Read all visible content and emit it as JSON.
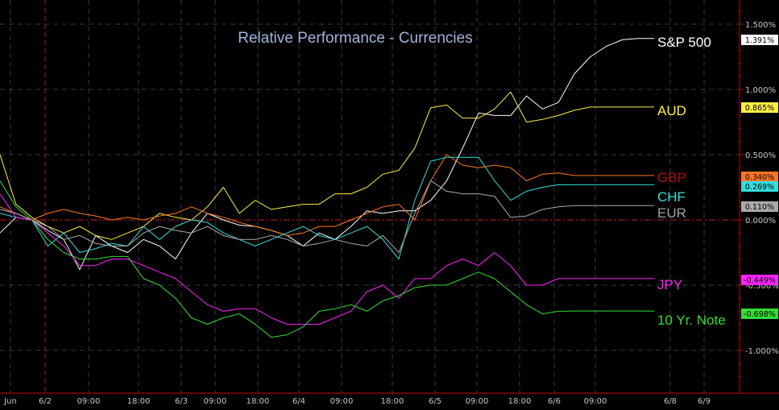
{
  "chart_data": {
    "type": "line",
    "title": "Relative Performance -   Currencies",
    "xlabel": "",
    "ylabel": "",
    "x_tick_labels": [
      "Jun",
      "6/2",
      "09:00",
      "18:00",
      "6/3",
      "09:00",
      "18:00",
      "6/4",
      "09:00",
      "18:00",
      "6/5",
      "09:00",
      "18:00",
      "6/6",
      "09:00",
      "6/8",
      "6/9"
    ],
    "y_tick_labels": [
      "1.500%",
      "1.000%",
      "0.500%",
      "0.000%",
      "-0.500%",
      "-1.000%"
    ],
    "ylim": [
      -1.25,
      1.7
    ],
    "grid": true,
    "legend": "labels at right end of each line",
    "colors": {
      "background": "#000000",
      "grid": "#3a3a3a",
      "title": "#9fb4dc",
      "axis": "#c00000",
      "zero_line": "#c02020"
    },
    "x": [
      0,
      0.5,
      1,
      1.5,
      2,
      2.5,
      3,
      3.5,
      4,
      4.5,
      5,
      5.5,
      6,
      6.5,
      7,
      7.5,
      8,
      8.5,
      9,
      9.5,
      10,
      10.5,
      11,
      11.5,
      12,
      12.5,
      13,
      13.5,
      14,
      14.5,
      15,
      15.5,
      16,
      16.5,
      17,
      17.5,
      18,
      18.5,
      19,
      19.5,
      20,
      20.5
    ],
    "series": [
      {
        "name": "S&P 500",
        "color": "#ffffff",
        "end_value_label": "1.391%",
        "values": [
          -0.1,
          0.02,
          0.0,
          -0.08,
          -0.15,
          -0.38,
          -0.12,
          -0.2,
          -0.25,
          -0.15,
          -0.2,
          -0.3,
          -0.1,
          0.05,
          0.0,
          -0.04,
          -0.05,
          -0.08,
          -0.12,
          -0.2,
          -0.1,
          -0.15,
          -0.05,
          0.07,
          0.05,
          0.07,
          0.07,
          0.15,
          0.3,
          0.55,
          0.82,
          0.8,
          0.8,
          0.95,
          0.85,
          0.9,
          1.12,
          1.25,
          1.33,
          1.38,
          1.39,
          1.391
        ]
      },
      {
        "name": "AUD",
        "color": "#ffee44",
        "end_value_label": "0.865%",
        "values": [
          0.5,
          0.12,
          0.02,
          -0.05,
          -0.1,
          -0.05,
          -0.12,
          -0.15,
          -0.1,
          -0.05,
          0.05,
          0.02,
          0.0,
          0.1,
          0.25,
          0.05,
          0.15,
          0.08,
          0.1,
          0.12,
          0.12,
          0.2,
          0.2,
          0.25,
          0.35,
          0.38,
          0.55,
          0.86,
          0.88,
          0.78,
          0.78,
          0.85,
          0.98,
          0.75,
          0.77,
          0.8,
          0.84,
          0.865,
          0.865,
          0.865,
          0.865,
          0.865
        ]
      },
      {
        "name": "GBP",
        "color": "#ff7722",
        "end_value_label": "0.340%",
        "values": [
          0.1,
          0.05,
          0.0,
          0.05,
          0.08,
          0.05,
          0.03,
          0.0,
          0.02,
          0.0,
          0.03,
          0.05,
          0.1,
          0.05,
          0.02,
          -0.02,
          -0.05,
          -0.08,
          -0.12,
          -0.1,
          -0.05,
          -0.05,
          0.0,
          0.05,
          0.1,
          0.12,
          0.0,
          0.3,
          0.5,
          0.42,
          0.4,
          0.42,
          0.4,
          0.3,
          0.35,
          0.36,
          0.34,
          0.34,
          0.34,
          0.34,
          0.34,
          0.34
        ]
      },
      {
        "name": "CHF",
        "color": "#33dddd",
        "end_value_label": "0.269%",
        "values": [
          0.05,
          0.02,
          0.0,
          -0.2,
          -0.1,
          -0.25,
          -0.22,
          -0.18,
          -0.2,
          -0.05,
          -0.15,
          -0.05,
          0.0,
          -0.02,
          -0.1,
          -0.15,
          -0.2,
          -0.15,
          -0.1,
          -0.05,
          -0.12,
          -0.15,
          -0.1,
          -0.05,
          -0.15,
          -0.3,
          0.15,
          0.45,
          0.48,
          0.48,
          0.48,
          0.3,
          0.15,
          0.22,
          0.25,
          0.27,
          0.269,
          0.269,
          0.269,
          0.269,
          0.269,
          0.269
        ]
      },
      {
        "name": "EUR",
        "color": "#aaaaaa",
        "end_value_label": "0.110%",
        "values": [
          0.08,
          0.05,
          0.0,
          -0.05,
          -0.15,
          -0.12,
          -0.18,
          -0.2,
          -0.2,
          -0.1,
          -0.05,
          -0.08,
          -0.1,
          -0.05,
          -0.12,
          -0.15,
          -0.15,
          -0.12,
          -0.15,
          -0.2,
          -0.18,
          -0.15,
          -0.18,
          -0.2,
          -0.12,
          -0.25,
          0.05,
          0.3,
          0.22,
          0.2,
          0.2,
          0.18,
          0.02,
          0.03,
          0.08,
          0.1,
          0.11,
          0.11,
          0.11,
          0.11,
          0.11,
          0.11
        ]
      },
      {
        "name": "JPY",
        "color": "#ff22ff",
        "end_value_label": "-0.449%",
        "values": [
          0.2,
          0.02,
          0.0,
          -0.1,
          -0.2,
          -0.35,
          -0.35,
          -0.3,
          -0.3,
          -0.35,
          -0.4,
          -0.45,
          -0.55,
          -0.65,
          -0.7,
          -0.68,
          -0.68,
          -0.75,
          -0.8,
          -0.8,
          -0.8,
          -0.75,
          -0.7,
          -0.55,
          -0.5,
          -0.6,
          -0.45,
          -0.45,
          -0.35,
          -0.3,
          -0.35,
          -0.25,
          -0.35,
          -0.5,
          -0.5,
          -0.45,
          -0.449,
          -0.449,
          -0.449,
          -0.449,
          -0.449,
          -0.449
        ]
      },
      {
        "name": "10 Yr. Note",
        "color": "#33dd33",
        "end_value_label": "-0.698%",
        "values": [
          0.3,
          0.1,
          0.0,
          -0.15,
          -0.25,
          -0.3,
          -0.3,
          -0.28,
          -0.28,
          -0.45,
          -0.5,
          -0.6,
          -0.75,
          -0.8,
          -0.75,
          -0.72,
          -0.8,
          -0.9,
          -0.88,
          -0.82,
          -0.7,
          -0.68,
          -0.65,
          -0.7,
          -0.62,
          -0.58,
          -0.52,
          -0.5,
          -0.5,
          -0.45,
          -0.4,
          -0.45,
          -0.55,
          -0.65,
          -0.72,
          -0.7,
          -0.698,
          -0.698,
          -0.698,
          -0.698,
          -0.698,
          -0.698
        ]
      }
    ]
  }
}
